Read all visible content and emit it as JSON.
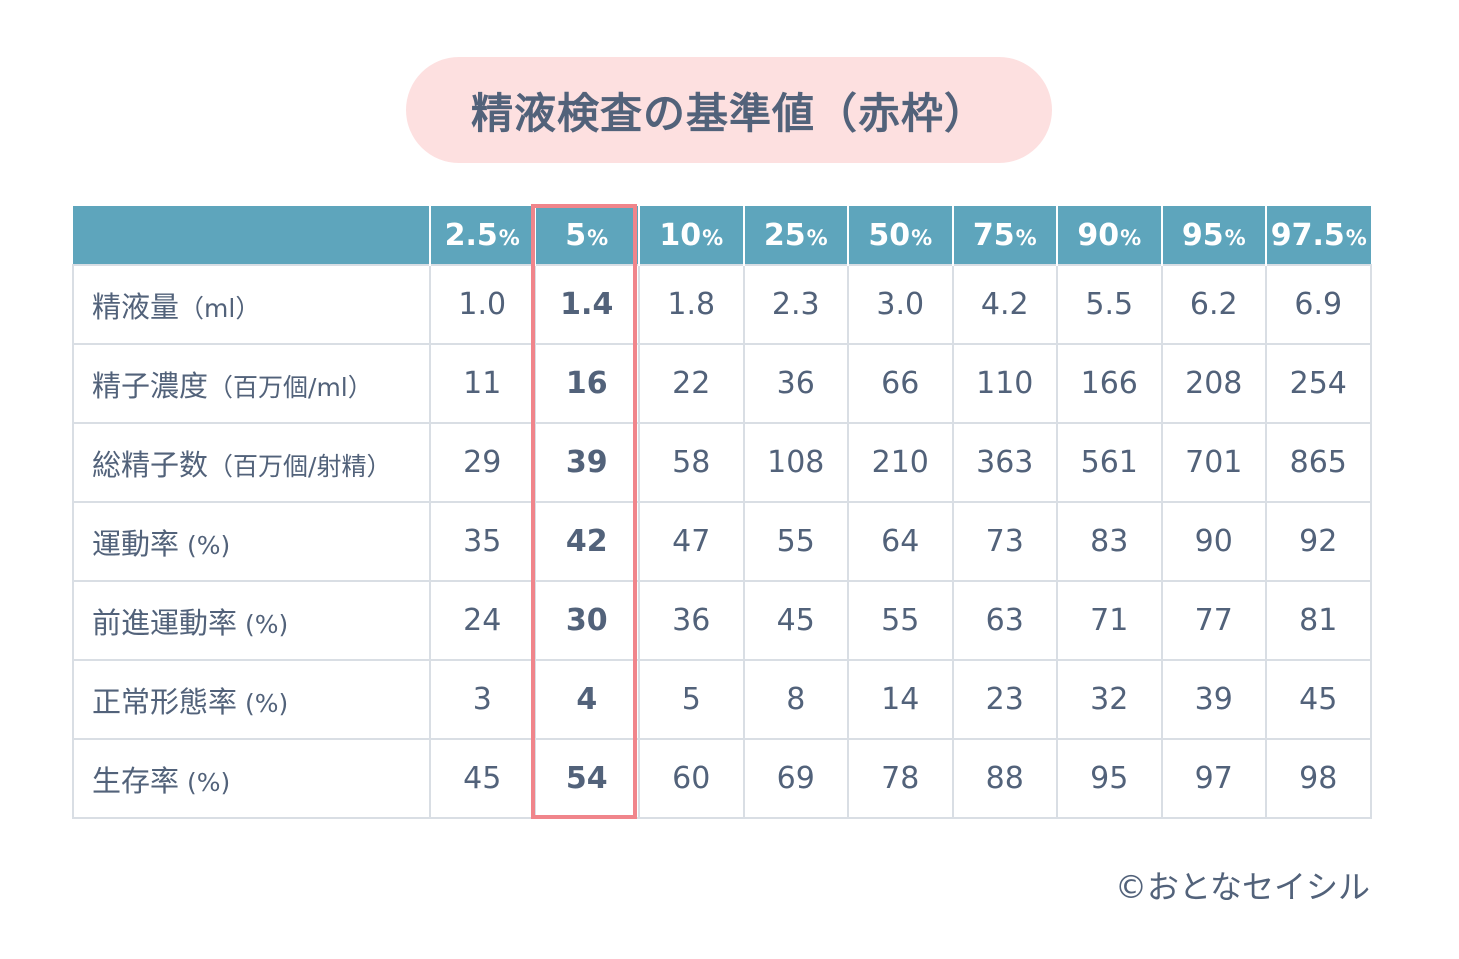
{
  "title": "精液検査の基準値（赤枠）",
  "header": {
    "percentiles": [
      {
        "num": "2.5",
        "sign": "%"
      },
      {
        "num": "5",
        "sign": "%"
      },
      {
        "num": "10",
        "sign": "%"
      },
      {
        "num": "25",
        "sign": "%"
      },
      {
        "num": "50",
        "sign": "%"
      },
      {
        "num": "75",
        "sign": "%"
      },
      {
        "num": "90",
        "sign": "%"
      },
      {
        "num": "95",
        "sign": "%"
      },
      {
        "num": "97.5",
        "sign": "%"
      }
    ]
  },
  "rows": [
    {
      "label": "精液量",
      "unit": "（ml）",
      "values": [
        "1.0",
        "1.4",
        "1.8",
        "2.3",
        "3.0",
        "4.2",
        "5.5",
        "6.2",
        "6.9"
      ]
    },
    {
      "label": "精子濃度",
      "unit": "（百万個/ml）",
      "values": [
        "11",
        "16",
        "22",
        "36",
        "66",
        "110",
        "166",
        "208",
        "254"
      ]
    },
    {
      "label": "総精子数",
      "unit": "（百万個/射精）",
      "values": [
        "29",
        "39",
        "58",
        "108",
        "210",
        "363",
        "561",
        "701",
        "865"
      ]
    },
    {
      "label": "運動率",
      "unit": " (%)",
      "values": [
        "35",
        "42",
        "47",
        "55",
        "64",
        "73",
        "83",
        "90",
        "92"
      ]
    },
    {
      "label": "前進運動率",
      "unit": " (%)",
      "values": [
        "24",
        "30",
        "36",
        "45",
        "55",
        "63",
        "71",
        "77",
        "81"
      ]
    },
    {
      "label": "正常形態率",
      "unit": " (%)",
      "values": [
        "3",
        "4",
        "5",
        "8",
        "14",
        "23",
        "32",
        "39",
        "45"
      ]
    },
    {
      "label": "生存率",
      "unit": " (%)",
      "values": [
        "45",
        "54",
        "60",
        "69",
        "78",
        "88",
        "95",
        "97",
        "98"
      ]
    }
  ],
  "highlight_column_index": 1,
  "colors": {
    "header_bg": "#5ea5bc",
    "title_bg": "#fde0e0",
    "highlight_border": "#f0858b",
    "text": "#52627a",
    "grid": "#d9dee4"
  },
  "credit": "©おとなセイシル"
}
